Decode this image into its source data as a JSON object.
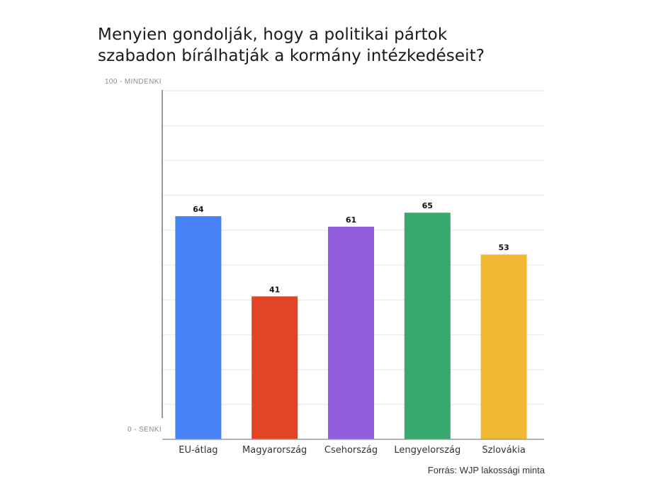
{
  "title_lines": [
    "Menyien gondolják, hogy a politikai pártok",
    "szabadon bírálhatják a kormány intézkedéseit?"
  ],
  "source": "Forrás: WJP lakossági minta",
  "chart_data": {
    "type": "bar",
    "categories": [
      "EU-átlag",
      "Magyarország",
      "Csehország",
      "Lengyelország",
      "Szlovákia"
    ],
    "values": [
      64,
      41,
      61,
      65,
      53
    ],
    "colors": [
      "#4683f7",
      "#e34426",
      "#8f5cdb",
      "#38a96e",
      "#f2b834"
    ],
    "ylim": [
      0,
      100
    ],
    "y_tick_labels": [
      "100 - MINDENKI",
      "0 - SENKI"
    ],
    "grid": true,
    "data_labels": true
  }
}
